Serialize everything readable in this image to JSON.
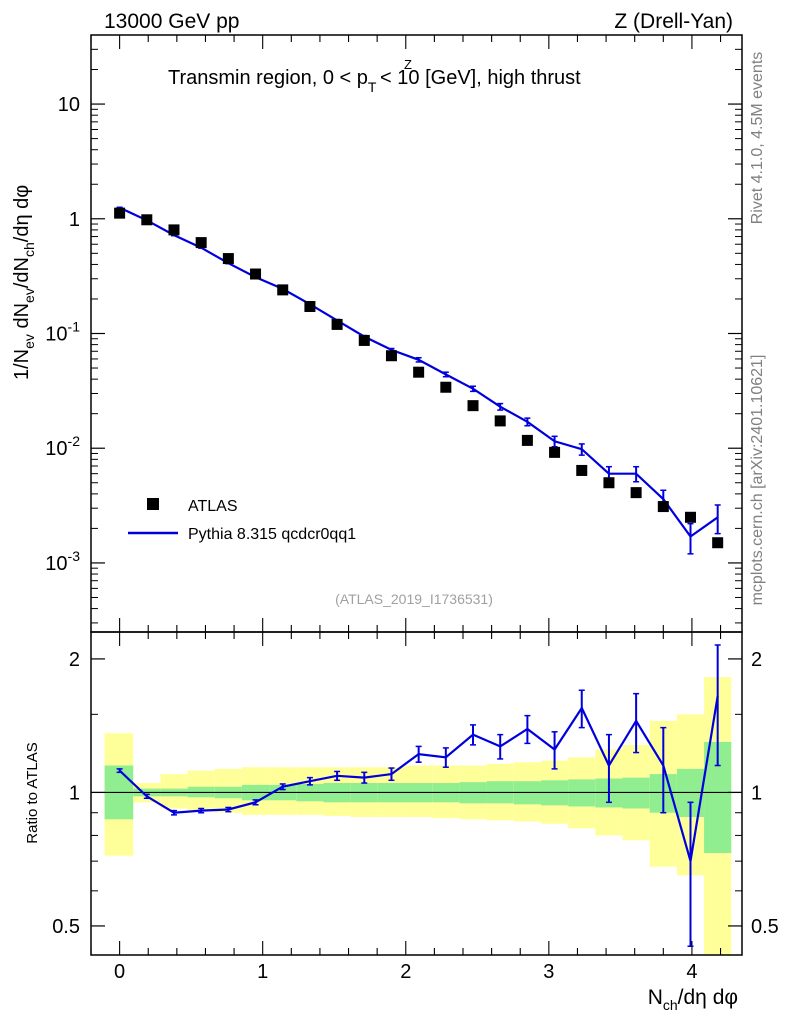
{
  "header": {
    "left": "13000 GeV pp",
    "right": "Z (Drell-Yan)"
  },
  "side_labels": {
    "rivet": "Rivet 4.1.0,  4.5M events",
    "mcplots": "mcplots.cern.ch [arXiv:2401.10621]"
  },
  "chart_data": [
    {
      "type": "scatter",
      "panel": "main",
      "title": "Transmin region, 0 < p_T^Z < 10 [GeV], high thrust",
      "title_parts": {
        "a": "Transmin region, 0 < p",
        "sub": "T",
        "sup": "Z",
        "b": " < 10 [GeV], high thrust"
      },
      "ylabel": "1/N_ev dN_ev/dN_ch/dη dφ",
      "ylabel_parts": {
        "p1": "1/N",
        "s1": "ev",
        "p2": " dN",
        "s2": "ev",
        "p3": "/dN",
        "s3": "ch",
        "p4": "/dη dφ"
      },
      "yscale": "log",
      "ylim": [
        0.00025,
        40
      ],
      "xlim": [
        -0.2,
        4.35
      ],
      "y_ticks": [
        {
          "value": 0.001,
          "base": "10",
          "exp": "-3"
        },
        {
          "value": 0.01,
          "base": "10",
          "exp": "-2"
        },
        {
          "value": 0.1,
          "base": "10",
          "exp": "-1"
        },
        {
          "value": 1,
          "base": "1",
          "exp": ""
        },
        {
          "value": 10,
          "base": "10",
          "exp": ""
        }
      ],
      "watermark": "(ATLAS_2019_I1736531)",
      "legend": {
        "position": "bottom-left",
        "entries": [
          {
            "name": "ATLAS",
            "marker": "square",
            "color": "#000000"
          },
          {
            "name": "Pythia 8.315 qcdcr0qq1",
            "marker": "line",
            "color": "#0000dd"
          }
        ]
      },
      "series": [
        {
          "name": "ATLAS",
          "x": [
            0.0,
            0.19,
            0.38,
            0.57,
            0.76,
            0.95,
            1.14,
            1.33,
            1.52,
            1.71,
            1.9,
            2.09,
            2.28,
            2.47,
            2.66,
            2.85,
            3.04,
            3.23,
            3.42,
            3.61,
            3.8,
            3.99,
            4.18
          ],
          "y": [
            1.12,
            0.98,
            0.8,
            0.62,
            0.45,
            0.33,
            0.24,
            0.172,
            0.12,
            0.087,
            0.064,
            0.046,
            0.034,
            0.0235,
            0.0173,
            0.0117,
            0.0092,
            0.0064,
            0.005,
            0.0041,
            0.0031,
            0.0025,
            0.0015
          ]
        },
        {
          "name": "Pythia 8.315 qcdcr0qq1",
          "x": [
            0.0,
            0.19,
            0.38,
            0.57,
            0.76,
            0.95,
            1.14,
            1.33,
            1.52,
            1.71,
            1.9,
            2.09,
            2.28,
            2.47,
            2.66,
            2.85,
            3.04,
            3.23,
            3.42,
            3.61,
            3.8,
            3.99,
            4.18
          ],
          "y": [
            1.25,
            0.97,
            0.72,
            0.56,
            0.41,
            0.31,
            0.245,
            0.18,
            0.13,
            0.094,
            0.072,
            0.059,
            0.044,
            0.033,
            0.023,
            0.017,
            0.0115,
            0.0098,
            0.006,
            0.006,
            0.0036,
            0.0017,
            0.0025
          ],
          "yerr": [
            0.01,
            0.01,
            0.008,
            0.006,
            0.004,
            0.003,
            0.003,
            0.003,
            0.0025,
            0.002,
            0.002,
            0.0025,
            0.002,
            0.0017,
            0.0015,
            0.0013,
            0.0012,
            0.0011,
            0.0009,
            0.0009,
            0.0007,
            0.0005,
            0.0007
          ]
        }
      ]
    },
    {
      "type": "line",
      "panel": "ratio",
      "ylabel": "Ratio to ATLAS",
      "yscale": "log",
      "ylim": [
        0.43,
        2.3
      ],
      "xlim": [
        -0.2,
        4.35
      ],
      "xlabel": "N_ch/dη dφ",
      "xlabel_parts": {
        "p1": "N",
        "s1": "ch",
        "p2": "/dη dφ"
      },
      "x_ticks": [
        "0",
        "1",
        "2",
        "3",
        "4"
      ],
      "y_ticks": [
        "0.5",
        "1",
        "2"
      ],
      "reference_line": 1,
      "bands": {
        "x_edges": [
          -0.105,
          0.095,
          0.285,
          0.475,
          0.665,
          0.855,
          1.045,
          1.235,
          1.425,
          1.615,
          1.805,
          1.995,
          2.185,
          2.375,
          2.565,
          2.755,
          2.945,
          3.135,
          3.325,
          3.515,
          3.705,
          3.895,
          4.085,
          4.275
        ],
        "stat_low": [
          0.87,
          0.98,
          0.98,
          0.975,
          0.97,
          0.96,
          0.96,
          0.955,
          0.95,
          0.95,
          0.95,
          0.95,
          0.95,
          0.945,
          0.945,
          0.94,
          0.935,
          0.93,
          0.925,
          0.92,
          0.9,
          0.88,
          0.73
        ],
        "stat_high": [
          1.15,
          1.02,
          1.02,
          1.03,
          1.03,
          1.04,
          1.04,
          1.045,
          1.05,
          1.05,
          1.05,
          1.05,
          1.05,
          1.055,
          1.06,
          1.06,
          1.065,
          1.07,
          1.075,
          1.08,
          1.1,
          1.13,
          1.3
        ],
        "total_low": [
          0.72,
          0.95,
          0.92,
          0.91,
          0.9,
          0.89,
          0.89,
          0.89,
          0.885,
          0.88,
          0.88,
          0.88,
          0.875,
          0.87,
          0.865,
          0.86,
          0.85,
          0.83,
          0.8,
          0.78,
          0.68,
          0.65,
          0.4
        ],
        "total_high": [
          1.36,
          1.05,
          1.1,
          1.12,
          1.13,
          1.14,
          1.14,
          1.14,
          1.14,
          1.14,
          1.14,
          1.15,
          1.15,
          1.15,
          1.16,
          1.17,
          1.18,
          1.2,
          1.25,
          1.28,
          1.45,
          1.5,
          1.82
        ],
        "stat_color": "#90ee90",
        "total_color": "#ffff99"
      },
      "series": [
        {
          "name": "Pythia 8.315 qcdcr0qq1",
          "color": "#0000dd",
          "x": [
            0.0,
            0.19,
            0.38,
            0.57,
            0.76,
            0.95,
            1.14,
            1.33,
            1.52,
            1.71,
            1.9,
            2.09,
            2.28,
            2.47,
            2.66,
            2.85,
            3.04,
            3.23,
            3.42,
            3.61,
            3.8,
            3.99,
            4.18
          ],
          "y": [
            1.12,
            0.98,
            0.9,
            0.91,
            0.915,
            0.95,
            1.03,
            1.06,
            1.09,
            1.08,
            1.1,
            1.22,
            1.2,
            1.35,
            1.27,
            1.39,
            1.25,
            1.55,
            1.15,
            1.45,
            1.15,
            0.7,
            1.65
          ],
          "yerr": [
            0.01,
            0.01,
            0.01,
            0.01,
            0.01,
            0.012,
            0.015,
            0.02,
            0.025,
            0.03,
            0.035,
            0.05,
            0.06,
            0.07,
            0.08,
            0.1,
            0.12,
            0.15,
            0.2,
            0.22,
            0.25,
            0.25,
            0.5
          ]
        }
      ]
    }
  ]
}
